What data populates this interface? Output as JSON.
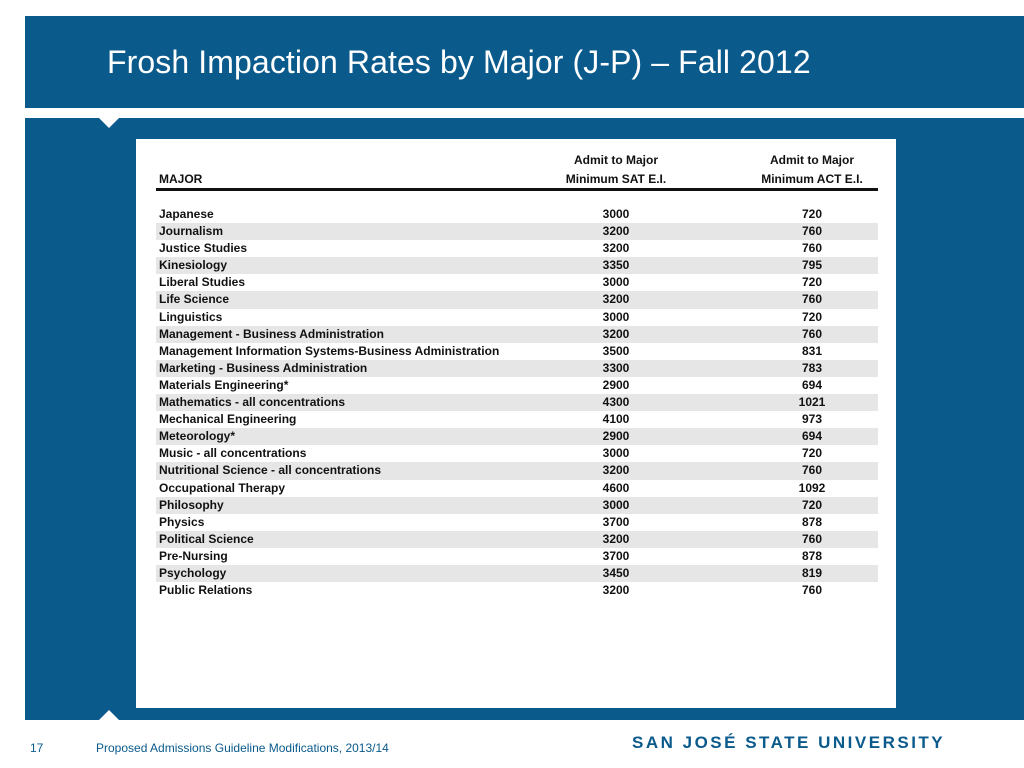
{
  "slide": {
    "title": "Frosh Impaction Rates by Major (J-P) – Fall 2012",
    "page_number": "17",
    "footer_text": "Proposed Admissions Guideline Modifications, 2013/14",
    "logo_text": "SAN JOSÉ STATE UNIVERSITY",
    "colors": {
      "brand_blue": "#0a5a8c",
      "row_shade": "#e6e6e6"
    }
  },
  "table": {
    "headers": {
      "major": "MAJOR",
      "sat_line1": "Admit to Major",
      "sat_line2": "Minimum SAT E.I.",
      "act_line1": "Admit to Major",
      "act_line2": "Minimum ACT E.I."
    },
    "rows": [
      {
        "major": "Japanese",
        "sat": "3000",
        "act": "720"
      },
      {
        "major": "Journalism",
        "sat": "3200",
        "act": "760"
      },
      {
        "major": "Justice Studies",
        "sat": "3200",
        "act": "760"
      },
      {
        "major": "Kinesiology",
        "sat": "3350",
        "act": "795"
      },
      {
        "major": "Liberal Studies",
        "sat": "3000",
        "act": "720"
      },
      {
        "major": "Life Science",
        "sat": "3200",
        "act": "760"
      },
      {
        "major": "Linguistics",
        "sat": "3000",
        "act": "720"
      },
      {
        "major": "Management - Business Administration",
        "sat": "3200",
        "act": "760"
      },
      {
        "major": "Management Information Systems-Business Administration",
        "sat": "3500",
        "act": "831"
      },
      {
        "major": "Marketing - Business Administration",
        "sat": "3300",
        "act": "783"
      },
      {
        "major": "Materials Engineering*",
        "sat": "2900",
        "act": "694"
      },
      {
        "major": "Mathematics - all concentrations",
        "sat": "4300",
        "act": "1021"
      },
      {
        "major": "Mechanical Engineering",
        "sat": "4100",
        "act": "973"
      },
      {
        "major": "Meteorology*",
        "sat": "2900",
        "act": "694"
      },
      {
        "major": "Music - all concentrations",
        "sat": "3000",
        "act": "720"
      },
      {
        "major": "Nutritional Science - all concentrations",
        "sat": "3200",
        "act": "760"
      },
      {
        "major": "Occupational Therapy",
        "sat": "4600",
        "act": "1092"
      },
      {
        "major": "Philosophy",
        "sat": "3000",
        "act": "720"
      },
      {
        "major": "Physics",
        "sat": "3700",
        "act": "878"
      },
      {
        "major": "Political Science",
        "sat": "3200",
        "act": "760"
      },
      {
        "major": "Pre-Nursing",
        "sat": "3700",
        "act": "878"
      },
      {
        "major": "Psychology",
        "sat": "3450",
        "act": "819"
      },
      {
        "major": "Public Relations",
        "sat": "3200",
        "act": "760"
      }
    ]
  }
}
